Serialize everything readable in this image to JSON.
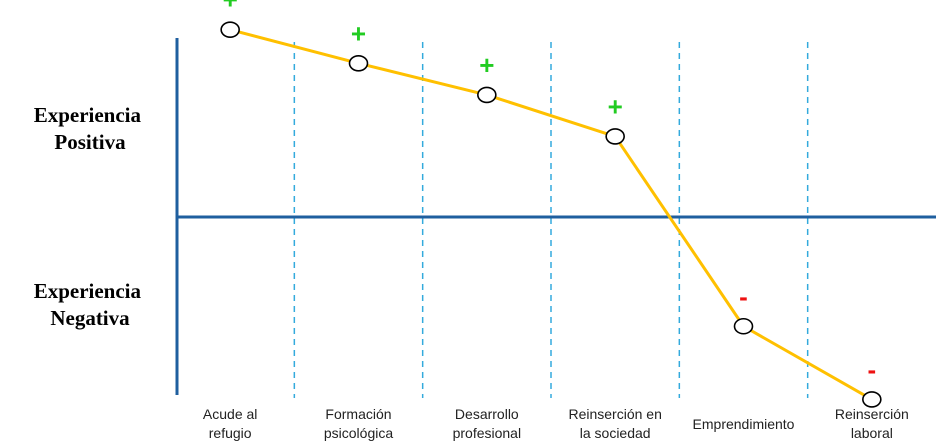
{
  "chart_data": {
    "type": "line",
    "title": "",
    "xlabel": "",
    "ylabel": "",
    "y_axis_labels": {
      "positive": [
        "Experiencia",
        "Positiva"
      ],
      "negative": [
        "Experiencia",
        "Negativa"
      ]
    },
    "categories": [
      [
        "Acude al",
        "refugio"
      ],
      [
        "Formación",
        "psicológica"
      ],
      [
        "Desarrollo",
        "profesional"
      ],
      [
        "Reinserción en",
        "la sociedad"
      ],
      [
        "Emprendimiento"
      ],
      [
        "Reinserción",
        "laboral"
      ]
    ],
    "values": [
      0.95,
      0.78,
      0.62,
      0.41,
      -0.55,
      -0.92
    ],
    "markers": [
      "+",
      "+",
      "+",
      "+",
      "-",
      "-"
    ],
    "ylim": [
      -1.1,
      1.1
    ],
    "grid": "vertical-dashed",
    "colors": {
      "line": "#FFC000",
      "axis": "#1F5F9F",
      "grid": "#33AADD",
      "positive": "#22CC22",
      "negative": "#EE1111"
    }
  }
}
